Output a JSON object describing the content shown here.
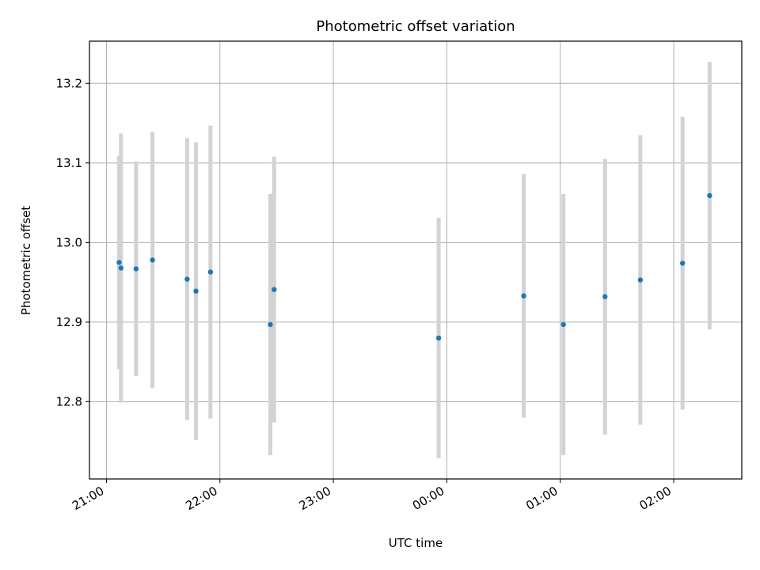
{
  "chart_data": {
    "type": "scatter",
    "title": "Photometric offset variation",
    "xlabel": "UTC time",
    "ylabel": "Photometric offset",
    "x_is_time": true,
    "xlim": [
      "20:51",
      "02:36"
    ],
    "xticks": [
      "21:00",
      "22:00",
      "23:00",
      "00:00",
      "01:00",
      "02:00"
    ],
    "ylim": [
      12.703,
      13.253
    ],
    "yticks": [
      "12.8",
      "12.9",
      "13.0",
      "13.1",
      "13.2"
    ],
    "ytick_values": [
      12.8,
      12.9,
      13.0,
      13.1,
      13.2
    ],
    "grid": true,
    "point_color": "#1f77b4",
    "errorbar_color": "#d3d3d3",
    "points": [
      {
        "x": "21:06:40",
        "y": 12.975,
        "yerr": 0.134
      },
      {
        "x": "21:07:40",
        "y": 12.968,
        "yerr": 0.169
      },
      {
        "x": "21:15:40",
        "y": 12.967,
        "yerr": 0.135
      },
      {
        "x": "21:24:20",
        "y": 12.978,
        "yerr": 0.161
      },
      {
        "x": "21:42:40",
        "y": 12.954,
        "yerr": 0.177
      },
      {
        "x": "21:47:20",
        "y": 12.939,
        "yerr": 0.187
      },
      {
        "x": "21:55:00",
        "y": 12.963,
        "yerr": 0.184
      },
      {
        "x": "22:26:40",
        "y": 12.897,
        "yerr": 0.164
      },
      {
        "x": "22:28:40",
        "y": 12.941,
        "yerr": 0.167
      },
      {
        "x": "23:55:40",
        "y": 12.88,
        "yerr": 0.151
      },
      {
        "x": "00:40:40",
        "y": 12.933,
        "yerr": 0.153
      },
      {
        "x": "01:01:40",
        "y": 12.897,
        "yerr": 0.164
      },
      {
        "x": "01:23:40",
        "y": 12.932,
        "yerr": 0.173
      },
      {
        "x": "01:42:20",
        "y": 12.953,
        "yerr": 0.182
      },
      {
        "x": "02:04:40",
        "y": 12.974,
        "yerr": 0.184
      },
      {
        "x": "02:19:00",
        "y": 13.059,
        "yerr": 0.168
      }
    ]
  }
}
